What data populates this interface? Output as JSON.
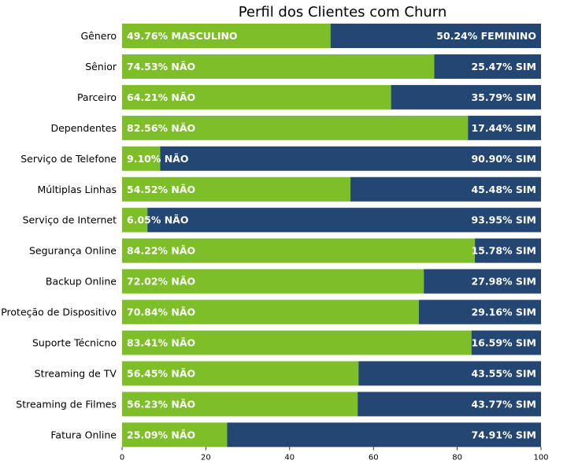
{
  "chart_data": {
    "type": "bar",
    "orientation": "horizontal",
    "stacked": true,
    "title": "Perfil dos Clientes com Churn",
    "xlim": [
      0,
      100
    ],
    "xticks": [
      "0",
      "20",
      "40",
      "60",
      "80",
      "100"
    ],
    "grid": false,
    "legend": "none",
    "colors": {
      "left": "#7dbe29",
      "right": "#234672"
    },
    "rows": [
      {
        "category": "Gênero",
        "left": 49.76,
        "right": 50.24,
        "left_label": "49.76% MASCULINO",
        "right_label": "50.24% FEMININO"
      },
      {
        "category": "Sênior",
        "left": 74.53,
        "right": 25.47,
        "left_label": "74.53% NÃO",
        "right_label": "25.47% SIM"
      },
      {
        "category": "Parceiro",
        "left": 64.21,
        "right": 35.79,
        "left_label": "64.21% NÃO",
        "right_label": "35.79% SIM"
      },
      {
        "category": "Dependentes",
        "left": 82.56,
        "right": 17.44,
        "left_label": "82.56% NÃO",
        "right_label": "17.44% SIM"
      },
      {
        "category": "Serviço de Telefone",
        "left": 9.1,
        "right": 90.9,
        "left_label": "9.10% NÃO",
        "right_label": "90.90% SIM"
      },
      {
        "category": "Múltiplas Linhas",
        "left": 54.52,
        "right": 45.48,
        "left_label": "54.52% NÃO",
        "right_label": "45.48% SIM"
      },
      {
        "category": "Serviço de Internet",
        "left": 6.05,
        "right": 93.95,
        "left_label": "6.05% NÃO",
        "right_label": "93.95% SIM"
      },
      {
        "category": "Segurança Online",
        "left": 84.22,
        "right": 15.78,
        "left_label": "84.22% NÃO",
        "right_label": "15.78% SIM"
      },
      {
        "category": "Backup Online",
        "left": 72.02,
        "right": 27.98,
        "left_label": "72.02% NÃO",
        "right_label": "27.98% SIM"
      },
      {
        "category": "Proteção de Dispositivo",
        "left": 70.84,
        "right": 29.16,
        "left_label": "70.84% NÃO",
        "right_label": "29.16% SIM"
      },
      {
        "category": "Suporte Técnicno",
        "left": 83.41,
        "right": 16.59,
        "left_label": "83.41% NÃO",
        "right_label": "16.59% SIM"
      },
      {
        "category": "Streaming de TV",
        "left": 56.45,
        "right": 43.55,
        "left_label": "56.45% NÃO",
        "right_label": "43.55% SIM"
      },
      {
        "category": "Streaming de Filmes",
        "left": 56.23,
        "right": 43.77,
        "left_label": "56.23% NÃO",
        "right_label": "43.77% SIM"
      },
      {
        "category": "Fatura Online",
        "left": 25.09,
        "right": 74.91,
        "left_label": "25.09% NÃO",
        "right_label": "74.91% SIM"
      }
    ]
  }
}
